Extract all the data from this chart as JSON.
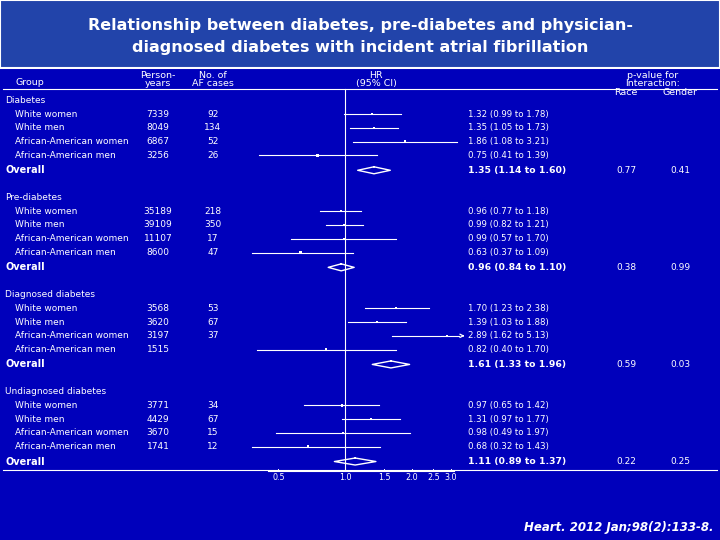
{
  "title_line1": "Relationship between diabetes, pre-diabetes and physician-",
  "title_line2": "diagnosed diabetes with incident atrial fibrillation",
  "bg_color": "#0000BB",
  "title_bg": "#2244AA",
  "text_color": "#FFFFFF",
  "citation": "Heart. 2012 Jan;98(2):133-8.",
  "sections": [
    {
      "header": "Diabetes",
      "rows": [
        {
          "label": "White women",
          "py": "7339",
          "af": "92",
          "hr": 1.32,
          "lo": 0.99,
          "hi": 1.78,
          "ci_text": "1.32 (0.99 to 1.78)",
          "is_arrow": false
        },
        {
          "label": "White men",
          "py": "8049",
          "af": "134",
          "hr": 1.35,
          "lo": 1.05,
          "hi": 1.73,
          "ci_text": "1.35 (1.05 to 1.73)",
          "is_arrow": false
        },
        {
          "label": "African-American women",
          "py": "6867",
          "af": "52",
          "hr": 1.86,
          "lo": 1.08,
          "hi": 3.21,
          "ci_text": "1.86 (1.08 to 3.21)",
          "is_arrow": false
        },
        {
          "label": "African-American men",
          "py": "3256",
          "af": "26",
          "hr": 0.75,
          "lo": 0.41,
          "hi": 1.39,
          "ci_text": "0.75 (0.41 to 1.39)",
          "is_arrow": false
        }
      ],
      "overall": {
        "hr": 1.35,
        "lo": 1.14,
        "hi": 1.6,
        "ci_text": "1.35 (1.14 to 1.60)",
        "race_p": "0.77",
        "gender_p": "0.41"
      }
    },
    {
      "header": "Pre-diabetes",
      "rows": [
        {
          "label": "White women",
          "py": "35189",
          "af": "218",
          "hr": 0.96,
          "lo": 0.77,
          "hi": 1.18,
          "ci_text": "0.96 (0.77 to 1.18)",
          "is_arrow": false
        },
        {
          "label": "White men",
          "py": "39109",
          "af": "350",
          "hr": 0.99,
          "lo": 0.82,
          "hi": 1.21,
          "ci_text": "0.99 (0.82 to 1.21)",
          "is_arrow": false
        },
        {
          "label": "African-American women",
          "py": "11107",
          "af": "17",
          "hr": 0.99,
          "lo": 0.57,
          "hi": 1.7,
          "ci_text": "0.99 (0.57 to 1.70)",
          "is_arrow": false
        },
        {
          "label": "African-American men",
          "py": "8600",
          "af": "47",
          "hr": 0.63,
          "lo": 0.37,
          "hi": 1.09,
          "ci_text": "0.63 (0.37 to 1.09)",
          "is_arrow": false
        }
      ],
      "overall": {
        "hr": 0.96,
        "lo": 0.84,
        "hi": 1.1,
        "ci_text": "0.96 (0.84 to 1.10)",
        "race_p": "0.38",
        "gender_p": "0.99"
      }
    },
    {
      "header": "Diagnosed diabetes",
      "rows": [
        {
          "label": "White women",
          "py": "3568",
          "af": "53",
          "hr": 1.7,
          "lo": 1.23,
          "hi": 2.38,
          "ci_text": "1.70 (1.23 to 2.38)",
          "is_arrow": false
        },
        {
          "label": "White men",
          "py": "3620",
          "af": "67",
          "hr": 1.39,
          "lo": 1.03,
          "hi": 1.88,
          "ci_text": "1.39 (1.03 to 1.88)",
          "is_arrow": false
        },
        {
          "label": "African-American women",
          "py": "3197",
          "af": "37",
          "hr": 2.89,
          "lo": 1.62,
          "hi": 5.13,
          "ci_text": "2.89 (1.62 to 5.13)",
          "is_arrow": true
        },
        {
          "label": "African-American men",
          "py": "1515",
          "af": "",
          "hr": 0.82,
          "lo": 0.4,
          "hi": 1.7,
          "ci_text": "0.82 (0.40 to 1.70)",
          "is_arrow": false
        }
      ],
      "overall": {
        "hr": 1.61,
        "lo": 1.33,
        "hi": 1.96,
        "ci_text": "1.61 (1.33 to 1.96)",
        "race_p": "0.59",
        "gender_p": "0.03"
      }
    },
    {
      "header": "Undiagnosed diabetes",
      "rows": [
        {
          "label": "White women",
          "py": "3771",
          "af": "34",
          "hr": 0.97,
          "lo": 0.65,
          "hi": 1.42,
          "ci_text": "0.97 (0.65 to 1.42)",
          "is_arrow": false
        },
        {
          "label": "White men",
          "py": "4429",
          "af": "67",
          "hr": 1.31,
          "lo": 0.97,
          "hi": 1.77,
          "ci_text": "1.31 (0.97 to 1.77)",
          "is_arrow": false
        },
        {
          "label": "African-American women",
          "py": "3670",
          "af": "15",
          "hr": 0.98,
          "lo": 0.49,
          "hi": 1.97,
          "ci_text": "0.98 (0.49 to 1.97)",
          "is_arrow": false
        },
        {
          "label": "African-American men",
          "py": "1741",
          "af": "12",
          "hr": 0.68,
          "lo": 0.32,
          "hi": 1.43,
          "ci_text": "0.68 (0.32 to 1.43)",
          "is_arrow": false
        }
      ],
      "overall": {
        "hr": 1.11,
        "lo": 0.89,
        "hi": 1.37,
        "ci_text": "1.11 (0.89 to 1.37)",
        "race_p": "0.22",
        "gender_p": "0.25"
      }
    }
  ],
  "xaxis_ticks": [
    0.5,
    1.0,
    1.5,
    2.0,
    2.5,
    3.0
  ],
  "xaxis_labels": [
    "0.5",
    "1.0",
    "1.5",
    "2.0",
    "2.5",
    "3.0"
  ]
}
